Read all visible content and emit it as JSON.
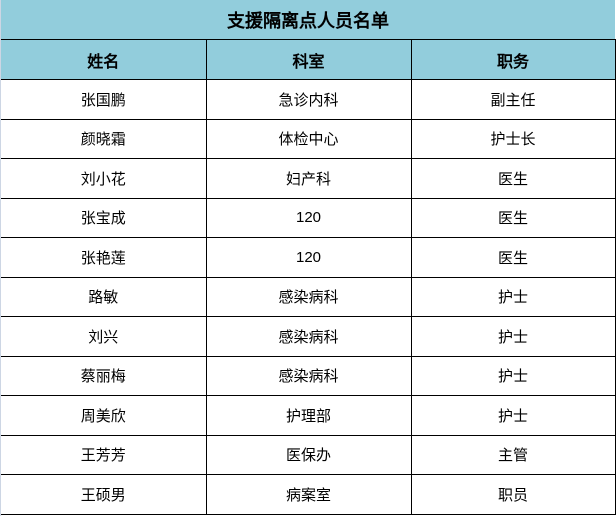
{
  "title": "支援隔离点人员名单",
  "colors": {
    "header_bg": "#92CDDC"
  },
  "columns": [
    "姓名",
    "科室",
    "职务"
  ],
  "rows": [
    [
      "张国鹏",
      "急诊内科",
      "副主任"
    ],
    [
      "颜晓霜",
      "体检中心",
      "护士长"
    ],
    [
      "刘小花",
      "妇产科",
      "医生"
    ],
    [
      "张宝成",
      "120",
      "医生"
    ],
    [
      "张艳莲",
      "120",
      "医生"
    ],
    [
      "路敏",
      "感染病科",
      "护士"
    ],
    [
      "刘兴",
      "感染病科",
      "护士"
    ],
    [
      "蔡丽梅",
      "感染病科",
      "护士"
    ],
    [
      "周美欣",
      "护理部",
      "护士"
    ],
    [
      "王芳芳",
      "医保办",
      "主管"
    ],
    [
      "王硕男",
      "病案室",
      "职员"
    ]
  ]
}
